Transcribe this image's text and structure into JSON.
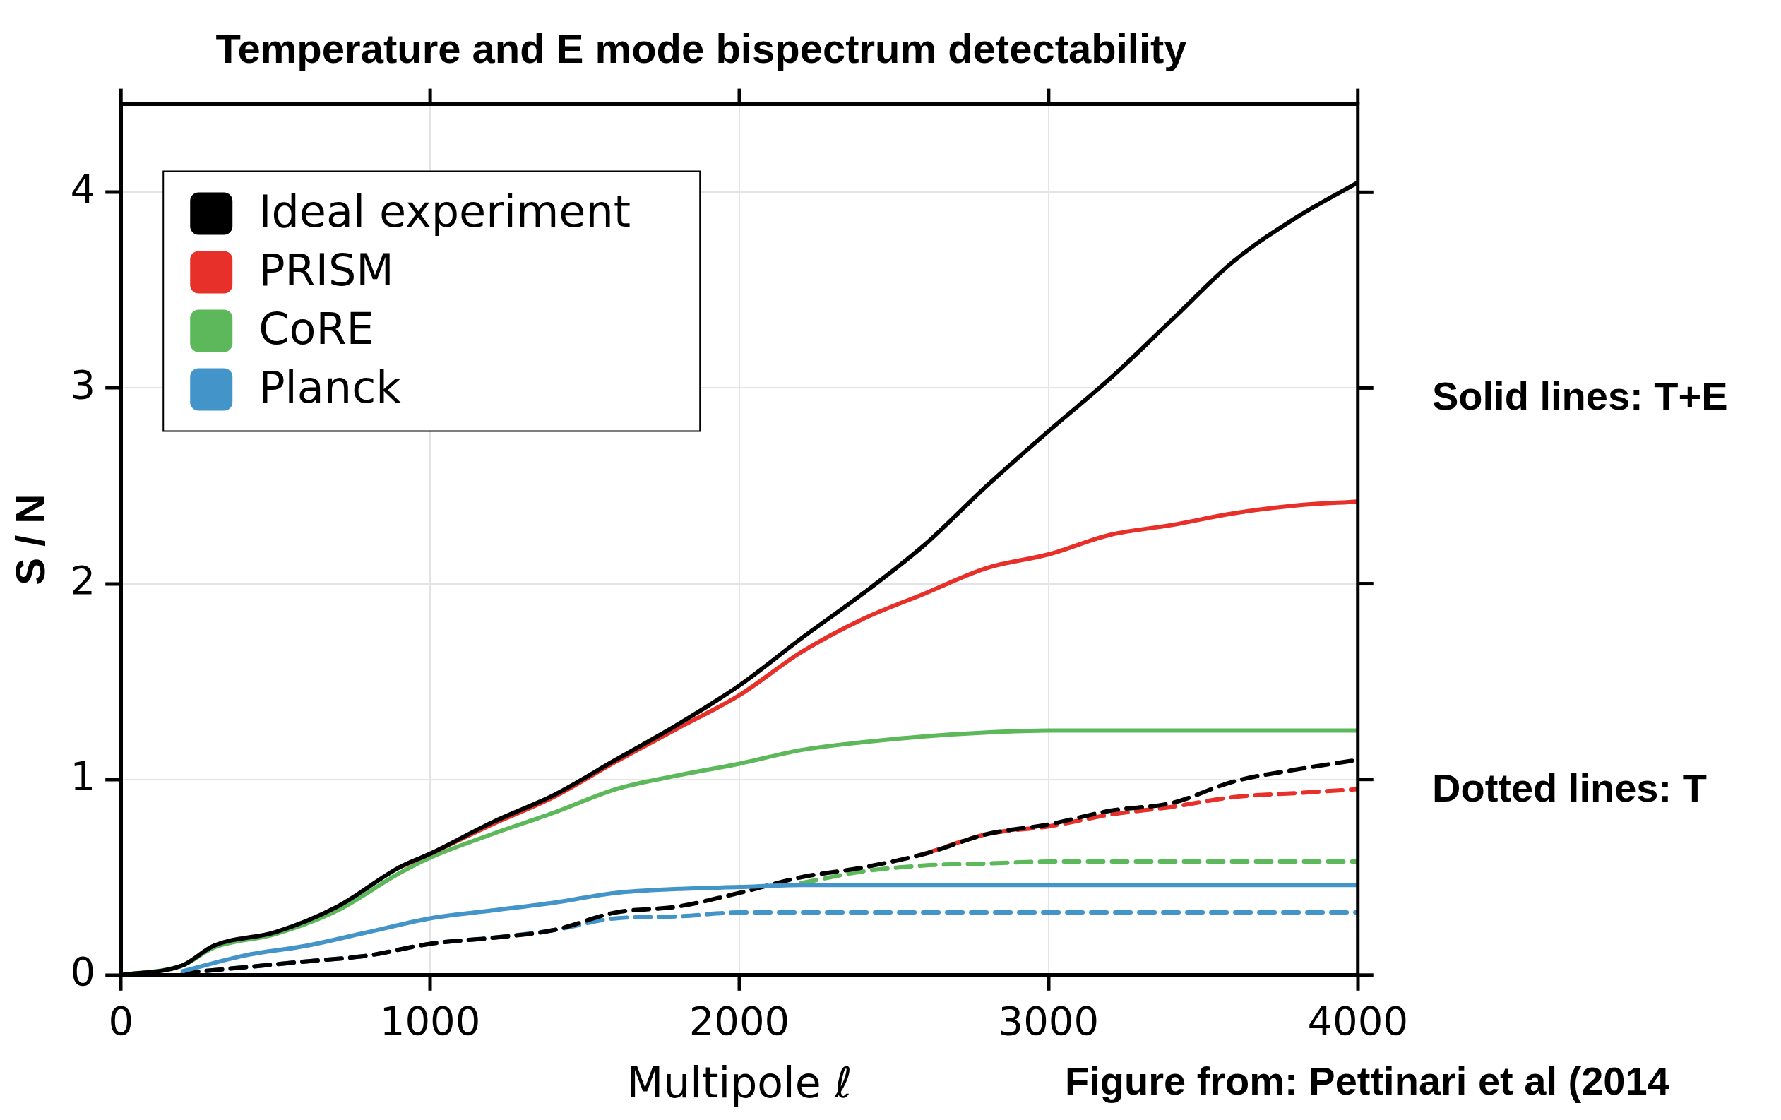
{
  "chart_data": {
    "type": "line",
    "title": "Temperature and E mode bispectrum detectability",
    "xlabel": "Multipole ℓ",
    "ylabel": "S / N",
    "xlim": [
      0,
      4000
    ],
    "xticks": [
      0,
      1000,
      2000,
      3000,
      4000
    ],
    "ylim": [
      0,
      4.45
    ],
    "yticks": [
      0,
      1,
      2,
      3,
      4
    ],
    "grid": true,
    "legend": "top left",
    "marker": "none",
    "annotations": [
      "Solid lines: T+E",
      "Dotted lines: T",
      "Figure from: Pettinari et al (2014"
    ],
    "series": [
      {
        "name": "Ideal experiment",
        "color": "#000000",
        "line_style": "solid",
        "x": [
          0,
          200,
          300,
          500,
          700,
          900,
          1000,
          1200,
          1400,
          1600,
          1800,
          2000,
          2200,
          2400,
          2600,
          2800,
          3000,
          3200,
          3400,
          3600,
          3800,
          4000
        ],
        "values": [
          0,
          0.05,
          0.15,
          0.22,
          0.35,
          0.55,
          0.62,
          0.78,
          0.92,
          1.1,
          1.28,
          1.48,
          1.72,
          1.95,
          2.2,
          2.5,
          2.78,
          3.05,
          3.35,
          3.65,
          3.87,
          4.05
        ]
      },
      {
        "name": "PRISM",
        "color": "#e8302a",
        "line_style": "solid",
        "x": [
          900,
          1000,
          1200,
          1400,
          1600,
          1800,
          2000,
          2200,
          2400,
          2600,
          2800,
          3000,
          3200,
          3400,
          3600,
          3800,
          4000
        ],
        "values": [
          0.55,
          0.62,
          0.77,
          0.91,
          1.09,
          1.26,
          1.43,
          1.65,
          1.82,
          1.95,
          2.08,
          2.15,
          2.25,
          2.3,
          2.36,
          2.4,
          2.42
        ]
      },
      {
        "name": "CoRE",
        "color": "#5cb85a",
        "line_style": "solid",
        "x": [
          0,
          200,
          300,
          500,
          700,
          900,
          1000,
          1200,
          1400,
          1600,
          1800,
          2000,
          2200,
          2400,
          2600,
          2800,
          3000,
          4000
        ],
        "values": [
          0,
          0.05,
          0.14,
          0.21,
          0.33,
          0.52,
          0.6,
          0.72,
          0.83,
          0.95,
          1.02,
          1.08,
          1.15,
          1.19,
          1.22,
          1.24,
          1.25,
          1.25
        ]
      },
      {
        "name": "Planck",
        "color": "#4394c8",
        "line_style": "solid",
        "x": [
          200,
          400,
          600,
          800,
          1000,
          1200,
          1400,
          1600,
          1800,
          2000,
          2200,
          4000
        ],
        "values": [
          0.02,
          0.1,
          0.15,
          0.22,
          0.29,
          0.33,
          0.37,
          0.42,
          0.44,
          0.45,
          0.46,
          0.46
        ]
      },
      {
        "color": "#000000",
        "line_style": "dashed",
        "x": [
          200,
          400,
          600,
          800,
          1000,
          1200,
          1400,
          1600,
          1800,
          2000,
          2200,
          2400,
          2600,
          2800,
          3000,
          3200,
          3400,
          3600,
          3800,
          4000
        ],
        "values": [
          0.01,
          0.04,
          0.07,
          0.1,
          0.16,
          0.19,
          0.23,
          0.32,
          0.35,
          0.42,
          0.5,
          0.55,
          0.62,
          0.72,
          0.77,
          0.84,
          0.88,
          0.99,
          1.05,
          1.1
        ]
      },
      {
        "color": "#e8302a",
        "line_style": "dashed",
        "x": [
          2600,
          2800,
          3000,
          3200,
          3400,
          3600,
          3800,
          4000
        ],
        "values": [
          0.62,
          0.72,
          0.76,
          0.82,
          0.86,
          0.91,
          0.93,
          0.95
        ]
      },
      {
        "color": "#5cb85a",
        "line_style": "dashed",
        "x": [
          2200,
          2400,
          2600,
          2800,
          3000,
          4000
        ],
        "values": [
          0.47,
          0.53,
          0.56,
          0.57,
          0.58,
          0.58
        ]
      },
      {
        "color": "#4394c8",
        "line_style": "dashed",
        "x": [
          200,
          400,
          600,
          800,
          1000,
          1200,
          1400,
          1600,
          1800,
          2000,
          2200,
          4000
        ],
        "values": [
          0.01,
          0.04,
          0.07,
          0.1,
          0.16,
          0.19,
          0.23,
          0.29,
          0.3,
          0.32,
          0.32,
          0.32
        ]
      }
    ]
  }
}
